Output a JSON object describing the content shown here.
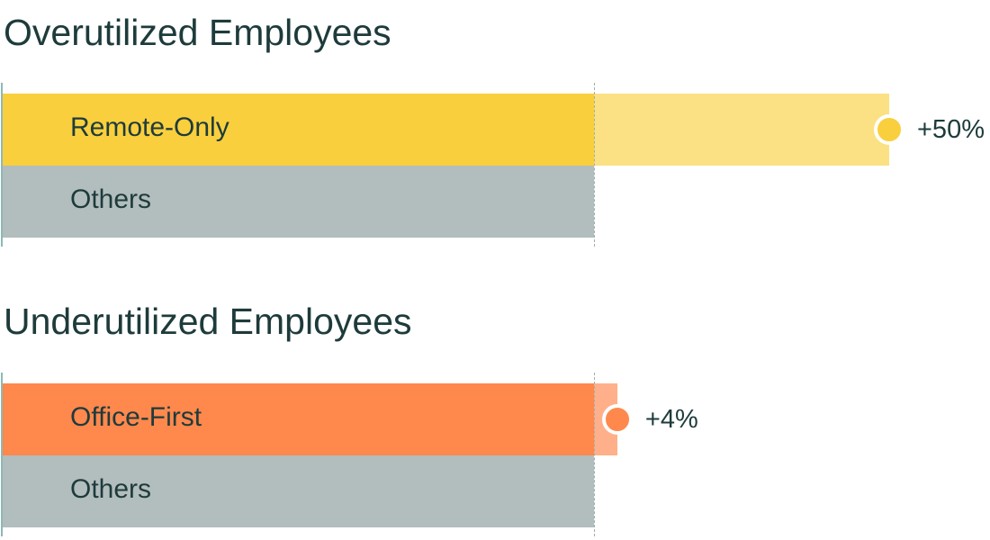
{
  "chart_data": [
    {
      "type": "bar",
      "title": "Overutilized Employees",
      "baseline": 1,
      "series": [
        {
          "name": "Remote-Only",
          "value": 1.5,
          "change_label": "+50%",
          "color": "#f9cf3e",
          "extension_color": "#fbe183"
        },
        {
          "name": "Others",
          "value": 1.0,
          "color": "#b2bdbd"
        }
      ]
    },
    {
      "type": "bar",
      "title": "Underutilized Employees",
      "baseline": 1,
      "series": [
        {
          "name": "Office-First",
          "value": 1.04,
          "change_label": "+4%",
          "color": "#ff884d",
          "extension_color": "#ffb08a"
        },
        {
          "name": "Others",
          "value": 1.0,
          "color": "#b2bdbd"
        }
      ]
    }
  ]
}
